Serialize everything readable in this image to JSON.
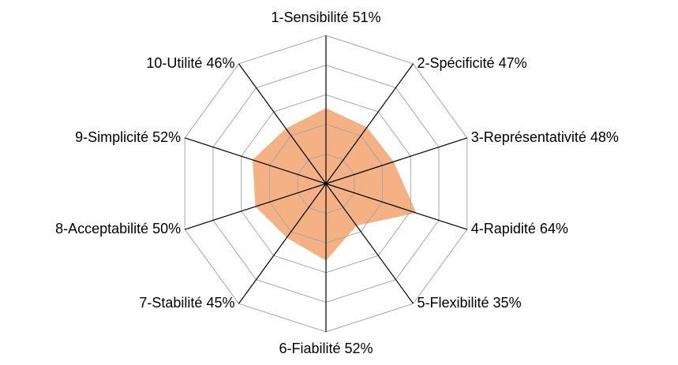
{
  "chart_data": {
    "type": "radar",
    "categories": [
      "1-Sensibilité",
      "2-Spécificité",
      "3-Représentativité",
      "4-Rapidité",
      "5-Flexibilité",
      "6-Fiabilité",
      "7-Stabilité",
      "8-Acceptabilité",
      "9-Simplicité",
      "10-Utilité"
    ],
    "values": [
      51,
      47,
      48,
      64,
      35,
      52,
      45,
      50,
      52,
      46
    ],
    "value_labels": [
      "51%",
      "47%",
      "48%",
      "64%",
      "35%",
      "52%",
      "45%",
      "50%",
      "52%",
      "46%"
    ],
    "color": "#f4b183",
    "ylim": [
      0,
      100
    ],
    "yticks": [
      20,
      40,
      60,
      80,
      100
    ],
    "grid": true
  }
}
